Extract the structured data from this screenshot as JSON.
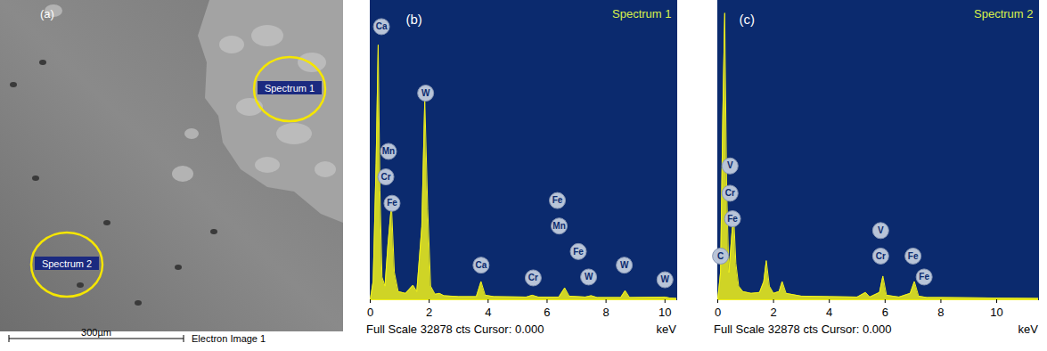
{
  "image": {
    "panel_label": "(a)",
    "markers": [
      {
        "label": "Spectrum 1"
      },
      {
        "label": "Spectrum 2"
      }
    ],
    "scale_bar": "300µm",
    "caption": "Electron Image 1"
  },
  "chart_data": [
    {
      "type": "area",
      "title": "Spectrum 1",
      "panel_label": "(b)",
      "xlabel": "keV",
      "footer": "Full Scale 32878 cts Cursor: 0.000",
      "color": "#f2f21a",
      "tick_labels": "x",
      "xlim": [
        0,
        10.4
      ],
      "xticks": [
        0,
        2,
        4,
        6,
        8,
        10
      ],
      "ylim": [
        0,
        32878
      ],
      "x": [
        0,
        0.1,
        0.2,
        0.27,
        0.33,
        0.4,
        0.5,
        0.6,
        0.72,
        0.82,
        0.95,
        1.2,
        1.45,
        1.58,
        1.75,
        1.85,
        1.95,
        2.05,
        2.2,
        2.35,
        2.5,
        3.0,
        3.6,
        3.76,
        3.9,
        4.2,
        5.3,
        5.5,
        5.7,
        6.4,
        6.6,
        6.75,
        7.3,
        7.5,
        7.7,
        8.5,
        8.65,
        8.8,
        10.0,
        10.15,
        10.4
      ],
      "values": [
        0,
        2000,
        15000,
        28000,
        12000,
        2500,
        1500,
        6000,
        10400,
        3000,
        900,
        700,
        1600,
        900,
        8000,
        22000,
        10000,
        1500,
        600,
        700,
        450,
        350,
        350,
        2000,
        500,
        350,
        300,
        500,
        300,
        300,
        1300,
        400,
        300,
        450,
        250,
        250,
        1000,
        250,
        300,
        200,
        150
      ],
      "annotations": [
        {
          "text": "Ca",
          "x": 0.38,
          "y": 30000
        },
        {
          "text": "Mn",
          "x": 0.62,
          "y": 16300
        },
        {
          "text": "Cr",
          "x": 0.53,
          "y": 13500
        },
        {
          "text": "Fe",
          "x": 0.74,
          "y": 10600
        },
        {
          "text": "W",
          "x": 1.88,
          "y": 22700
        },
        {
          "text": "Ca",
          "x": 3.76,
          "y": 3800
        },
        {
          "text": "Cr",
          "x": 5.53,
          "y": 2400
        },
        {
          "text": "Fe",
          "x": 6.35,
          "y": 10900
        },
        {
          "text": "Mn",
          "x": 6.41,
          "y": 8100
        },
        {
          "text": "Fe",
          "x": 7.06,
          "y": 5300
        },
        {
          "text": "W",
          "x": 7.41,
          "y": 2500
        },
        {
          "text": "W",
          "x": 8.62,
          "y": 3800
        },
        {
          "text": "W",
          "x": 10.0,
          "y": 2200
        }
      ]
    },
    {
      "type": "area",
      "title": "Spectrum 2",
      "panel_label": "(c)",
      "xlabel": "keV",
      "footer": "Full Scale 32878 cts Cursor: 0.000",
      "color": "#f2f21a",
      "tick_labels": "x",
      "xlim": [
        0,
        11.5
      ],
      "xticks": [
        0,
        2,
        4,
        6,
        8,
        10
      ],
      "ylim": [
        0,
        32878
      ],
      "x": [
        0,
        0.1,
        0.18,
        0.25,
        0.32,
        0.4,
        0.5,
        0.57,
        0.65,
        0.75,
        0.9,
        1.2,
        1.5,
        1.65,
        1.74,
        1.85,
        2.0,
        2.2,
        2.31,
        2.45,
        3.0,
        4.0,
        5.0,
        5.3,
        5.45,
        5.8,
        5.92,
        6.05,
        6.5,
        6.9,
        7.05,
        7.2,
        7.5,
        8.0,
        11.5
      ],
      "values": [
        0,
        3000,
        20000,
        31500,
        12000,
        3000,
        7000,
        9400,
        4000,
        1500,
        900,
        700,
        800,
        2000,
        4300,
        1500,
        700,
        900,
        2000,
        700,
        400,
        350,
        300,
        800,
        300,
        800,
        2600,
        500,
        300,
        700,
        2000,
        400,
        250,
        250,
        150
      ],
      "annotations": [
        {
          "text": "V",
          "x": 0.44,
          "y": 14700
        },
        {
          "text": "Cr",
          "x": 0.44,
          "y": 11700
        },
        {
          "text": "Fe",
          "x": 0.53,
          "y": 8900
        },
        {
          "text": "C",
          "x": 0.1,
          "y": 4800
        },
        {
          "text": "V",
          "x": 5.84,
          "y": 7600
        },
        {
          "text": "Cr",
          "x": 5.84,
          "y": 4800
        },
        {
          "text": "Fe",
          "x": 7.0,
          "y": 4800
        },
        {
          "text": "Fe",
          "x": 7.4,
          "y": 2500
        }
      ]
    }
  ]
}
